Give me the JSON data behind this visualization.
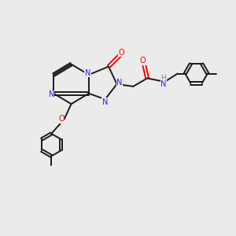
{
  "bg_color": "#ebebeb",
  "bond_color": "#1a1a1a",
  "N_color": "#2020ff",
  "O_color": "#ff0000",
  "H_color": "#4a9090",
  "figsize": [
    3.0,
    3.0
  ],
  "dpi": 100,
  "xlim": [
    0,
    10
  ],
  "ylim": [
    0,
    10
  ],
  "lw": 1.4,
  "fs": 7.0
}
